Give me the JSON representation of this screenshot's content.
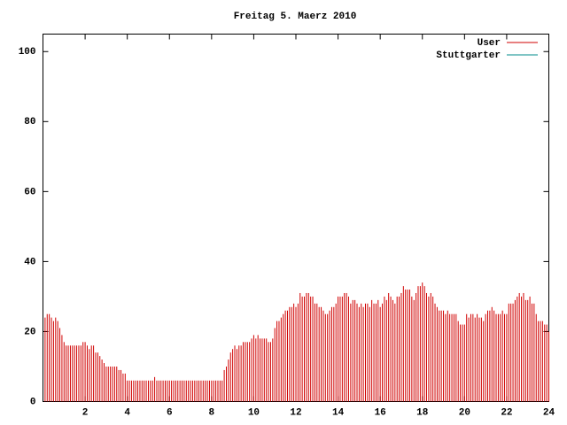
{
  "chart_data": {
    "type": "impulses",
    "title": "Freitag 5. Maerz 2010",
    "xlim": [
      0,
      24
    ],
    "xticks": [
      2,
      4,
      6,
      8,
      10,
      12,
      14,
      16,
      18,
      20,
      22,
      24
    ],
    "ylim": [
      0,
      105
    ],
    "yticks": [
      0,
      20,
      40,
      60,
      80,
      100
    ],
    "legend": "top-right",
    "x": [
      0.1,
      0.2,
      0.3,
      0.4,
      0.5,
      0.6,
      0.7,
      0.8,
      0.9,
      1.0,
      1.1,
      1.2,
      1.3,
      1.4,
      1.5,
      1.6,
      1.7,
      1.8,
      1.9,
      2.0,
      2.1,
      2.2,
      2.3,
      2.4,
      2.5,
      2.6,
      2.7,
      2.8,
      2.9,
      3.0,
      3.1,
      3.2,
      3.3,
      3.4,
      3.5,
      3.6,
      3.7,
      3.8,
      3.9,
      4.0,
      4.1,
      4.2,
      4.3,
      4.4,
      4.5,
      4.6,
      4.7,
      4.8,
      4.9,
      5.0,
      5.1,
      5.2,
      5.3,
      5.4,
      5.5,
      5.6,
      5.7,
      5.8,
      5.9,
      6.0,
      6.1,
      6.2,
      6.3,
      6.4,
      6.5,
      6.6,
      6.7,
      6.8,
      6.9,
      7.0,
      7.1,
      7.2,
      7.3,
      7.4,
      7.5,
      7.6,
      7.7,
      7.8,
      7.9,
      8.0,
      8.1,
      8.2,
      8.3,
      8.4,
      8.5,
      8.6,
      8.7,
      8.8,
      8.9,
      9.0,
      9.1,
      9.2,
      9.3,
      9.4,
      9.5,
      9.6,
      9.7,
      9.8,
      9.9,
      10.0,
      10.1,
      10.2,
      10.3,
      10.4,
      10.5,
      10.6,
      10.7,
      10.8,
      10.9,
      11.0,
      11.1,
      11.2,
      11.3,
      11.4,
      11.5,
      11.6,
      11.7,
      11.8,
      11.9,
      12.0,
      12.1,
      12.2,
      12.3,
      12.4,
      12.5,
      12.6,
      12.7,
      12.8,
      12.9,
      13.0,
      13.1,
      13.2,
      13.3,
      13.4,
      13.5,
      13.6,
      13.7,
      13.8,
      13.9,
      14.0,
      14.1,
      14.2,
      14.3,
      14.4,
      14.5,
      14.6,
      14.7,
      14.8,
      14.9,
      15.0,
      15.1,
      15.2,
      15.3,
      15.4,
      15.5,
      15.6,
      15.7,
      15.8,
      15.9,
      16.0,
      16.1,
      16.2,
      16.3,
      16.4,
      16.5,
      16.6,
      16.7,
      16.8,
      16.9,
      17.0,
      17.1,
      17.2,
      17.3,
      17.4,
      17.5,
      17.6,
      17.7,
      17.8,
      17.9,
      18.0,
      18.1,
      18.2,
      18.3,
      18.4,
      18.5,
      18.6,
      18.7,
      18.8,
      18.9,
      19.0,
      19.1,
      19.2,
      19.3,
      19.4,
      19.5,
      19.6,
      19.7,
      19.8,
      19.9,
      20.0,
      20.1,
      20.2,
      20.3,
      20.4,
      20.5,
      20.6,
      20.7,
      20.8,
      20.9,
      21.0,
      21.1,
      21.2,
      21.3,
      21.4,
      21.5,
      21.6,
      21.7,
      21.8,
      21.9,
      22.0,
      22.1,
      22.2,
      22.3,
      22.4,
      22.5,
      22.6,
      22.7,
      22.8,
      22.9,
      23.0,
      23.1,
      23.2,
      23.3,
      23.4,
      23.5,
      23.6,
      23.7,
      23.8,
      23.9,
      24.0
    ],
    "series": [
      {
        "name": "User",
        "color": "#d00000",
        "values": [
          24,
          25,
          25,
          24,
          23,
          24,
          23,
          21,
          19,
          17,
          16,
          16,
          16,
          16,
          16,
          16,
          16,
          16,
          17,
          17,
          16,
          15,
          16,
          16,
          14,
          14,
          13,
          12,
          11,
          10,
          10,
          10,
          10,
          10,
          10,
          9,
          9,
          8,
          8,
          6,
          6,
          6,
          6,
          6,
          6,
          6,
          6,
          6,
          6,
          6,
          6,
          6,
          7,
          6,
          6,
          6,
          6,
          6,
          6,
          6,
          6,
          6,
          6,
          6,
          6,
          6,
          6,
          6,
          6,
          6,
          6,
          6,
          6,
          6,
          6,
          6,
          6,
          6,
          6,
          6,
          6,
          6,
          6,
          6,
          6,
          9,
          10,
          12,
          14,
          15,
          16,
          15,
          16,
          16,
          17,
          17,
          17,
          17,
          18,
          19,
          18,
          19,
          18,
          18,
          18,
          18,
          17,
          17,
          18,
          21,
          23,
          23,
          24,
          25,
          26,
          26,
          27,
          27,
          28,
          27,
          28,
          31,
          30,
          30,
          31,
          31,
          30,
          30,
          28,
          28,
          27,
          27,
          26,
          25,
          25,
          26,
          27,
          27,
          28,
          30,
          30,
          30,
          31,
          31,
          30,
          28,
          29,
          29,
          28,
          27,
          28,
          27,
          28,
          28,
          27,
          29,
          28,
          28,
          29,
          27,
          28,
          30,
          29,
          31,
          30,
          29,
          28,
          30,
          30,
          31,
          33,
          32,
          32,
          32,
          30,
          29,
          31,
          33,
          33,
          34,
          33,
          31,
          30,
          31,
          30,
          28,
          27,
          26,
          26,
          26,
          25,
          26,
          25,
          25,
          25,
          25,
          23,
          22,
          22,
          22,
          25,
          24,
          25,
          25,
          24,
          25,
          24,
          24,
          23,
          25,
          26,
          26,
          27,
          26,
          25,
          25,
          25,
          26,
          25,
          25,
          28,
          28,
          28,
          29,
          30,
          31,
          30,
          31,
          29,
          29,
          30,
          28,
          28,
          25,
          23,
          23,
          23,
          22,
          22,
          20
        ]
      },
      {
        "name": "Stuttgarter",
        "color": "#008b8b",
        "values": [
          null,
          null,
          null,
          null,
          null,
          null,
          null,
          null,
          null,
          null,
          null,
          null,
          null,
          null,
          null,
          null,
          null,
          null,
          null,
          null,
          null,
          null,
          null,
          null,
          null,
          null,
          null,
          null,
          null,
          null,
          null,
          null,
          null,
          null,
          null,
          null,
          null,
          null,
          null,
          null,
          null,
          null,
          null,
          null,
          null,
          null,
          null,
          null,
          null,
          null,
          null,
          null,
          null,
          null,
          null,
          null,
          null,
          null,
          null,
          null,
          null,
          null,
          null,
          null,
          null,
          null,
          null,
          null,
          null,
          null,
          null,
          null,
          null,
          null,
          null,
          null,
          null,
          null,
          null,
          null,
          null,
          null,
          null,
          null,
          null,
          null,
          null,
          null,
          null,
          null,
          null,
          null,
          null,
          null,
          null,
          null,
          null,
          null,
          null,
          null,
          null,
          null,
          null,
          null,
          null,
          null,
          null,
          null,
          null,
          null,
          null,
          null,
          null,
          null,
          null,
          null,
          null,
          null,
          null,
          null,
          null,
          null,
          null,
          null,
          null,
          null,
          null,
          null,
          null,
          null,
          null,
          null,
          null,
          null,
          null,
          null,
          null,
          null,
          null,
          null,
          null,
          null,
          null,
          null,
          null,
          null,
          null,
          null,
          null,
          null,
          null,
          null,
          null,
          null,
          null,
          null,
          null,
          null,
          null,
          null,
          null,
          null,
          null,
          null,
          null,
          null,
          null,
          null,
          null,
          null,
          null,
          null,
          null,
          null,
          null,
          null,
          null,
          null,
          null,
          null,
          null,
          null,
          null,
          null,
          null,
          null,
          null,
          null,
          null,
          null,
          null,
          null,
          null,
          null,
          null,
          null,
          null,
          null,
          null,
          null,
          null,
          null,
          null,
          null,
          null,
          null,
          null,
          null,
          null,
          null,
          null,
          null,
          null,
          null,
          null,
          null,
          null,
          null,
          null,
          null,
          null,
          null,
          null,
          null,
          null,
          null,
          null,
          null,
          null,
          null,
          null,
          null,
          null,
          null,
          null,
          null,
          null,
          null,
          null,
          null
        ]
      }
    ]
  }
}
